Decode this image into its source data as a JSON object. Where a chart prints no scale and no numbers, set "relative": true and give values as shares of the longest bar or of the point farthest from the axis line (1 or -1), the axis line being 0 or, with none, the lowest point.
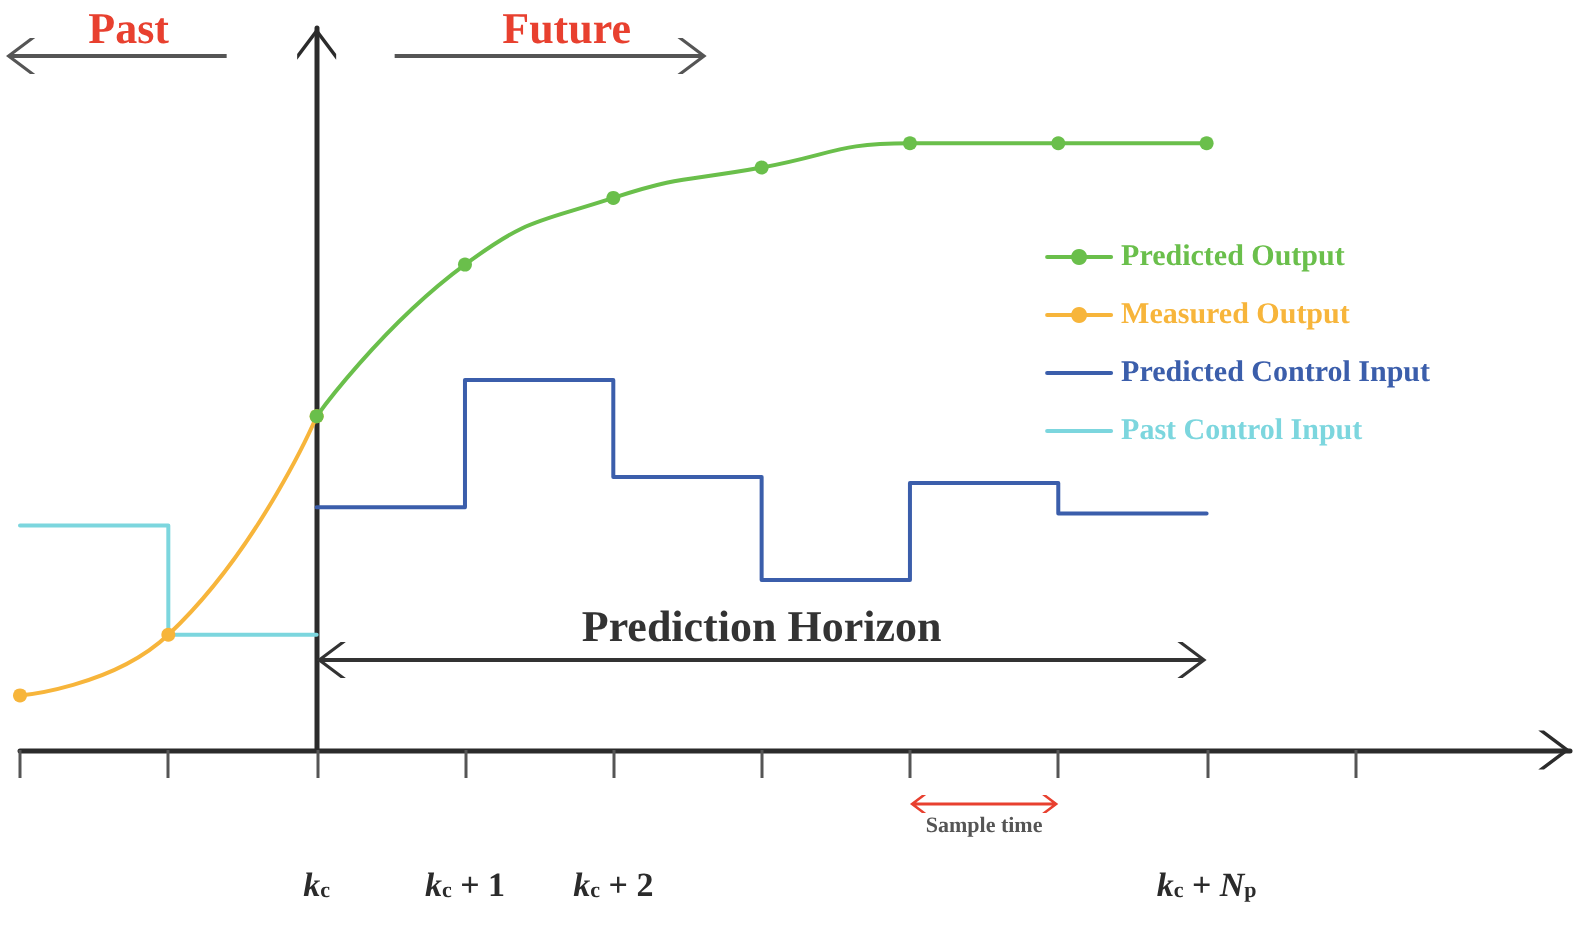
{
  "chart_data": {
    "type": "line",
    "relative": true,
    "legend": "right",
    "xlim": [
      -2,
      8.45
    ],
    "xticks": [
      {
        "value": -2,
        "label": null
      },
      {
        "value": -1,
        "label": null
      },
      {
        "value": 0,
        "label": "k$_{c}$"
      },
      {
        "value": 1,
        "label": "k$_{c}$ + 1"
      },
      {
        "value": 2,
        "label": "k$_{c}$ + 2"
      },
      {
        "value": 3,
        "label": null
      },
      {
        "value": 4,
        "label": null
      },
      {
        "value": 5,
        "label": null
      },
      {
        "value": 6,
        "label": "k$_{c}$ + N$_{p}$"
      },
      {
        "value": 7,
        "label": null
      }
    ],
    "series": [
      {
        "name": "Predicted Output",
        "marker": "circle",
        "color": "#6abf4b",
        "x": [
          0,
          1,
          2,
          3,
          4,
          5,
          6
        ],
        "values": [
          0.55,
          0.8,
          0.91,
          0.96,
          1,
          1,
          1
        ]
      },
      {
        "name": "Measured Output",
        "marker": "circle",
        "color": "#f7b53b",
        "x": [
          -2,
          -1,
          0
        ],
        "values": [
          0.09,
          0.19,
          0.55
        ]
      },
      {
        "name": "Predicted Control Input",
        "type": "step",
        "color": "#3b5eab",
        "x": [
          0,
          1,
          2,
          3,
          4,
          5,
          6
        ],
        "values": [
          0.4,
          0.61,
          0.45,
          0.28,
          0.44,
          0.39,
          0.39
        ]
      },
      {
        "name": "Past Control Input",
        "type": "step",
        "color": "#7cd6de",
        "x": [
          -2,
          -1,
          0
        ],
        "values": [
          0.37,
          0.19,
          0.19
        ]
      }
    ],
    "annotations": [
      "Past",
      "Future",
      "Prediction Horizon",
      "Sample time"
    ]
  }
}
